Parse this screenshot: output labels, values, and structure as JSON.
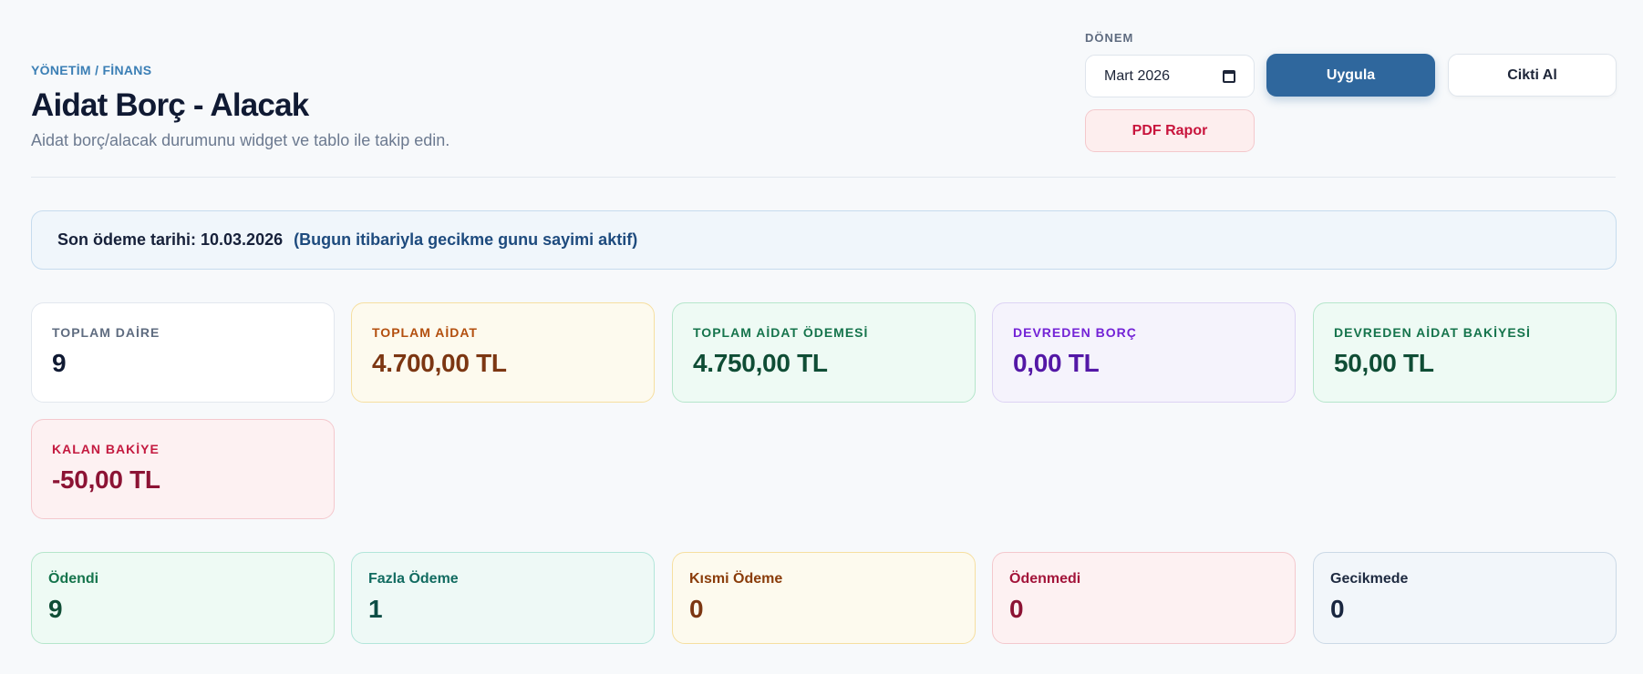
{
  "header": {
    "breadcrumb": "YÖNETİM / FİNANS",
    "title": "Aidat Borç - Alacak",
    "subtitle": "Aidat borç/alacak durumunu widget ve tablo ile takip edin."
  },
  "controls": {
    "period_label": "DÖNEM",
    "period_value": "Mart 2026",
    "apply_label": "Uygula",
    "print_label": "Cikti Al",
    "pdf_label": "PDF Rapor"
  },
  "notice": {
    "due_text": "Son ödeme tarihi: 10.03.2026",
    "note_text": "(Bugun itibariyla gecikme gunu sayimi aktif)"
  },
  "kpis": [
    {
      "label": "TOPLAM DAİRE",
      "value": "9"
    },
    {
      "label": "TOPLAM AİDAT",
      "value": "4.700,00 TL"
    },
    {
      "label": "TOPLAM AİDAT ÖDEMESİ",
      "value": "4.750,00 TL"
    },
    {
      "label": "DEVREDEN BORÇ",
      "value": "0,00 TL"
    },
    {
      "label": "DEVREDEN AİDAT BAKİYESİ",
      "value": "50,00 TL"
    },
    {
      "label": "KALAN BAKİYE",
      "value": "-50,00 TL"
    }
  ],
  "status_cards": [
    {
      "label": "Ödendi",
      "value": "9"
    },
    {
      "label": "Fazla Ödeme",
      "value": "1"
    },
    {
      "label": "Kısmi Ödeme",
      "value": "0"
    },
    {
      "label": "Ödenmedi",
      "value": "0"
    },
    {
      "label": "Gecikmede",
      "value": "0"
    }
  ],
  "colors": {
    "primary": "#2f679d",
    "danger": "#c8143c",
    "success": "#0f5a3c",
    "warning": "#8a3c0a",
    "purple": "#5a17b5"
  }
}
